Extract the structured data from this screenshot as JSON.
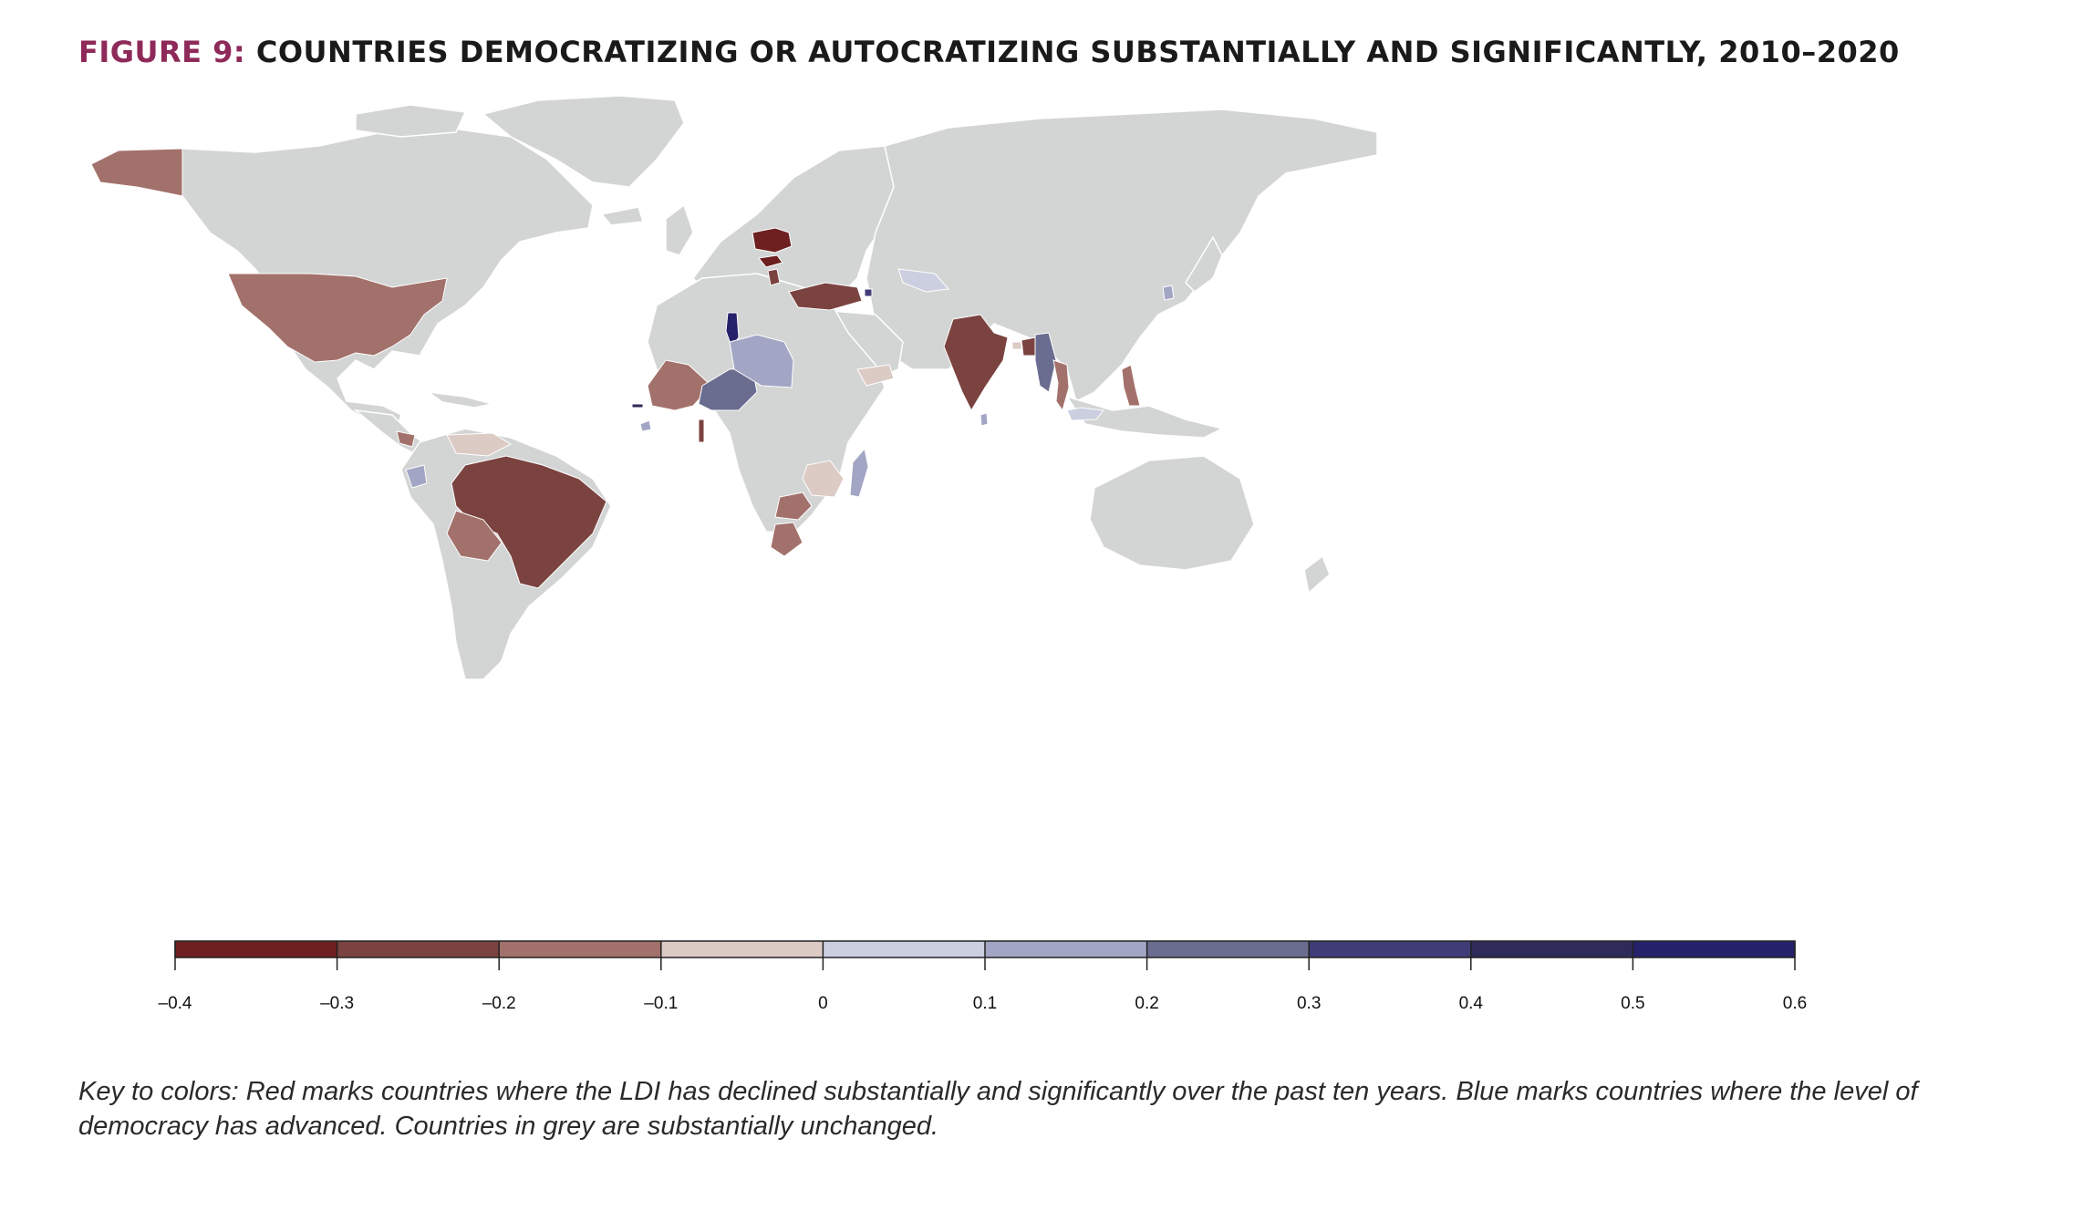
{
  "figure": {
    "label": "FIGURE 9:",
    "title": "COUNTRIES DEMOCRATIZING OR AUTOCRATIZING SUBSTANTIALLY AND SIGNIFICANTLY, 2010–2020"
  },
  "colors": {
    "unchanged": "#d3d4d4",
    "border": "#ffffff",
    "title_label": "#8e2a5a",
    "title_text": "#1a1a1a"
  },
  "legend": {
    "ticks": [
      "–0.4",
      "–0.3",
      "–0.2",
      "–0.1",
      "0",
      "0.1",
      "0.2",
      "0.3",
      "0.4",
      "0.5",
      "0.6"
    ],
    "bins": [
      {
        "from": -0.4,
        "to": -0.3,
        "color": "#6e1f1f"
      },
      {
        "from": -0.3,
        "to": -0.2,
        "color": "#7b4340"
      },
      {
        "from": -0.2,
        "to": -0.1,
        "color": "#a3716b"
      },
      {
        "from": -0.1,
        "to": 0.0,
        "color": "#dccac5"
      },
      {
        "from": 0.0,
        "to": 0.1,
        "color": "#cbcfe0"
      },
      {
        "from": 0.1,
        "to": 0.2,
        "color": "#a2a6c4"
      },
      {
        "from": 0.2,
        "to": 0.3,
        "color": "#6a6d8f"
      },
      {
        "from": 0.3,
        "to": 0.4,
        "color": "#3f3c78"
      },
      {
        "from": 0.4,
        "to": 0.5,
        "color": "#2e2a5a"
      },
      {
        "from": 0.5,
        "to": 0.6,
        "color": "#25216a"
      }
    ]
  },
  "map_data": {
    "value_range": [
      -0.4,
      0.6
    ],
    "countries": [
      {
        "name": "Poland",
        "bin": -0.35
      },
      {
        "name": "Hungary",
        "bin": -0.35
      },
      {
        "name": "Serbia",
        "bin": -0.25
      },
      {
        "name": "Turkey",
        "bin": -0.25
      },
      {
        "name": "India",
        "bin": -0.25
      },
      {
        "name": "Brazil",
        "bin": -0.25
      },
      {
        "name": "Bangladesh",
        "bin": -0.25
      },
      {
        "name": "Togo",
        "bin": -0.25
      },
      {
        "name": "United States",
        "bin": -0.15
      },
      {
        "name": "Mali",
        "bin": -0.15
      },
      {
        "name": "Bolivia",
        "bin": -0.15
      },
      {
        "name": "Zambia",
        "bin": -0.15
      },
      {
        "name": "Botswana",
        "bin": -0.15
      },
      {
        "name": "Philippines",
        "bin": -0.15
      },
      {
        "name": "Thailand",
        "bin": -0.15
      },
      {
        "name": "Nicaragua",
        "bin": -0.15
      },
      {
        "name": "Venezuela",
        "bin": -0.05
      },
      {
        "name": "Tanzania",
        "bin": -0.05
      },
      {
        "name": "Yemen",
        "bin": -0.05
      },
      {
        "name": "Bhutan",
        "bin": -0.05
      },
      {
        "name": "Uzbekistan",
        "bin": 0.05
      },
      {
        "name": "Malaysia",
        "bin": 0.05
      },
      {
        "name": "Libya",
        "bin": 0.15
      },
      {
        "name": "Madagascar",
        "bin": 0.15
      },
      {
        "name": "Ecuador",
        "bin": 0.15
      },
      {
        "name": "Sri Lanka",
        "bin": 0.15
      },
      {
        "name": "South Korea",
        "bin": 0.15
      },
      {
        "name": "Sierra Leone",
        "bin": 0.15
      },
      {
        "name": "Niger",
        "bin": 0.25
      },
      {
        "name": "Myanmar",
        "bin": 0.25
      },
      {
        "name": "Armenia",
        "bin": 0.35
      },
      {
        "name": "The Gambia",
        "bin": 0.45
      },
      {
        "name": "Tunisia",
        "bin": 0.55
      }
    ]
  },
  "caption": "Key to colors: Red marks countries where the LDI has declined substantially and significantly over the past ten years. Blue marks countries where the level of democracy has advanced. Countries in grey are substantially unchanged."
}
